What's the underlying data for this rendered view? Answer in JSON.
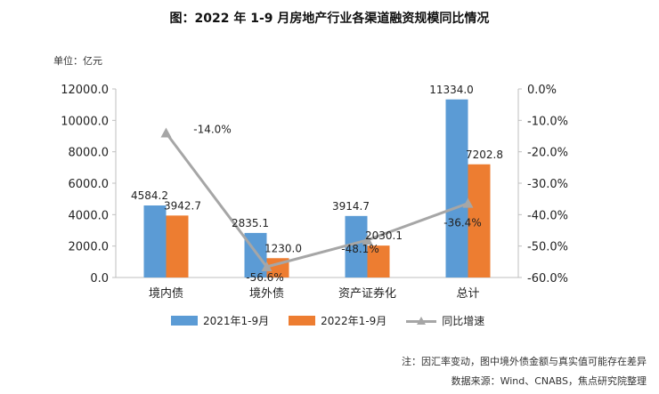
{
  "title": "图：2022 年 1-9 月房地产行业各渠道融资规模同比情况",
  "unit_label": "单位：亿元",
  "note": "注：因汇率变动，图中境外债金额与真实值可能存在差异",
  "source": "数据来源：Wind、CNABS，焦点研究院整理",
  "colors": {
    "series1": "#5b9bd5",
    "series2": "#ed7d31",
    "line": "#a6a6a6"
  },
  "chart_data": {
    "type": "bar",
    "categories": [
      "境内债",
      "境外债",
      "资产证券化",
      "总计"
    ],
    "series": [
      {
        "name": "2021年1-9月",
        "values": [
          4584.2,
          2835.1,
          3914.7,
          11334.0
        ],
        "labels": [
          "4584.2",
          "2835.1",
          "3914.7",
          "11334.0"
        ]
      },
      {
        "name": "2022年1-9月",
        "values": [
          3942.7,
          1230.0,
          2030.1,
          7202.8
        ],
        "labels": [
          "3942.7",
          "1230.0",
          "2030.1",
          "7202.8"
        ]
      }
    ],
    "line_series": {
      "name": "同比增速",
      "axis": "right",
      "values": [
        -14.0,
        -56.6,
        -48.1,
        -36.4
      ],
      "labels": [
        "-14.0%",
        "-56.6%",
        "-48.1%",
        "-36.4%"
      ]
    },
    "y_left": {
      "ylim": [
        0,
        12000
      ],
      "ticks": [
        0,
        2000,
        4000,
        6000,
        8000,
        10000,
        12000
      ],
      "tick_labels": [
        "0.0",
        "2000.0",
        "4000.0",
        "6000.0",
        "8000.0",
        "10000.0",
        "12000.0"
      ]
    },
    "y_right": {
      "ylim": [
        -60,
        0
      ],
      "ticks": [
        0,
        -10,
        -20,
        -30,
        -40,
        -50,
        -60
      ],
      "tick_labels": [
        "0.0%",
        "-10.0%",
        "-20.0%",
        "-30.0%",
        "-40.0%",
        "-50.0%",
        "-60.0%"
      ]
    },
    "grid": false,
    "legend_position": "bottom"
  }
}
